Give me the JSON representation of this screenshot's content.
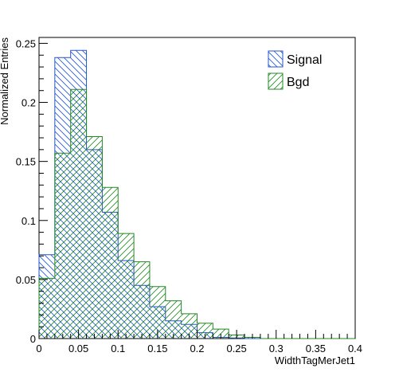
{
  "chart_data": {
    "type": "histogram",
    "xlabel": "WidthTagMerJet1",
    "ylabel": "Normalized Entries",
    "xlim": [
      0,
      0.4
    ],
    "ylim": [
      0,
      0.255
    ],
    "bin_width": 0.02,
    "bin_edges": [
      0,
      0.02,
      0.04,
      0.06,
      0.08,
      0.1,
      0.12,
      0.14,
      0.16,
      0.18,
      0.2,
      0.22,
      0.24,
      0.26,
      0.28,
      0.3,
      0.32,
      0.34,
      0.36,
      0.38,
      0.4
    ],
    "x_ticks": [
      0,
      0.05,
      0.1,
      0.15,
      0.2,
      0.25,
      0.3,
      0.35,
      0.4
    ],
    "x_tick_labels": [
      "0",
      "0.05",
      "0.1",
      "0.15",
      "0.2",
      "0.25",
      "0.3",
      "0.35",
      "0.4"
    ],
    "y_ticks": [
      0,
      0.05,
      0.1,
      0.15,
      0.2,
      0.25
    ],
    "y_tick_labels": [
      "0",
      "0.05",
      "0.1",
      "0.15",
      "0.2",
      "0.25"
    ],
    "grid": false,
    "legend_position": "top-right",
    "series": [
      {
        "name": "Signal",
        "color": "#2255cc",
        "hatch": "backslash",
        "values": [
          0.071,
          0.238,
          0.244,
          0.16,
          0.107,
          0.066,
          0.045,
          0.027,
          0.015,
          0.012,
          0.005,
          0.001,
          0.0005,
          0,
          0,
          0,
          0,
          0,
          0,
          0
        ]
      },
      {
        "name": "Bgd",
        "color": "#228822",
        "hatch": "slash",
        "values": [
          0.051,
          0.157,
          0.211,
          0.171,
          0.128,
          0.089,
          0.065,
          0.044,
          0.032,
          0.021,
          0.013,
          0.008,
          0.003,
          0.001,
          0,
          0,
          0,
          0,
          0,
          0
        ]
      }
    ]
  }
}
